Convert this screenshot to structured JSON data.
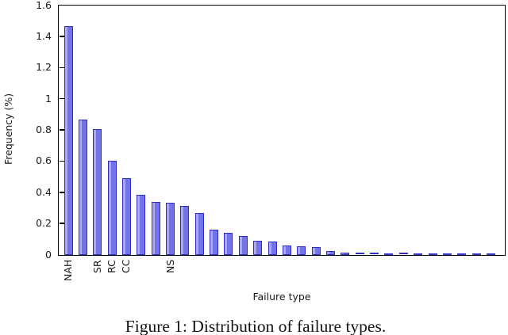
{
  "figure": {
    "caption": "Figure 1: Distribution of failure types.",
    "background": "#ffffff"
  },
  "chart_data": {
    "type": "bar",
    "title": "",
    "xlabel": "Failure type",
    "ylabel": "Frequency (%)",
    "ylim": [
      0,
      1.6
    ],
    "ytick_step": 0.2,
    "ytick_labels": [
      "0",
      "0.2",
      "0.4",
      "0.6",
      "0.8",
      "1",
      "1.2",
      "1.4",
      "1.6"
    ],
    "grid": false,
    "legend": null,
    "axis_color": "#000000",
    "bar_color_fill": "#7272e9",
    "bar_color_highlight": "#a9a9f4",
    "bar_color_border": "#2e2ec6",
    "categories": [
      "NAH",
      "",
      "SR",
      "RC",
      "CC",
      "",
      "",
      "NS",
      "",
      "",
      "",
      "",
      "",
      "",
      "",
      "",
      "",
      "",
      "",
      "",
      "",
      "",
      "",
      "",
      "",
      "",
      "",
      "",
      "",
      ""
    ],
    "values": [
      1.465,
      0.865,
      0.805,
      0.6,
      0.49,
      0.385,
      0.34,
      0.335,
      0.31,
      0.265,
      0.16,
      0.14,
      0.12,
      0.09,
      0.085,
      0.06,
      0.055,
      0.05,
      0.025,
      0.015,
      0.013,
      0.012,
      0.01,
      0.012,
      0.01,
      0.008,
      0.01,
      0.008,
      0.005,
      0.008
    ]
  }
}
